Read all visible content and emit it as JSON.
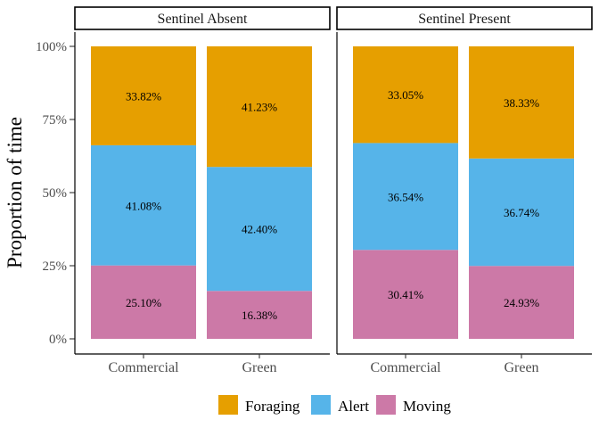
{
  "chart_data": {
    "type": "bar",
    "stacked": true,
    "ylabel": "Proportion of time",
    "xlabel": "",
    "ylim": [
      0,
      1
    ],
    "yticks": [
      "0%",
      "25%",
      "50%",
      "75%",
      "100%"
    ],
    "legend_placement": "bottom",
    "grid": false,
    "panels": [
      {
        "title": "Sentinel Absent",
        "categories": [
          "Commercial",
          "Green"
        ],
        "series": [
          {
            "name": "Moving",
            "values": [
              0.251,
              0.1638
            ],
            "labels": [
              "25.10%",
              "16.38%"
            ]
          },
          {
            "name": "Alert",
            "values": [
              0.4108,
              0.424
            ],
            "labels": [
              "41.08%",
              "42.40%"
            ]
          },
          {
            "name": "Foraging",
            "values": [
              0.3382,
              0.4123
            ],
            "labels": [
              "33.82%",
              "41.23%"
            ]
          }
        ]
      },
      {
        "title": "Sentinel Present",
        "categories": [
          "Commercial",
          "Green"
        ],
        "series": [
          {
            "name": "Moving",
            "values": [
              0.3041,
              0.2493
            ],
            "labels": [
              "30.41%",
              "24.93%"
            ]
          },
          {
            "name": "Alert",
            "values": [
              0.3654,
              0.3674
            ],
            "labels": [
              "36.54%",
              "36.74%"
            ]
          },
          {
            "name": "Foraging",
            "values": [
              0.3305,
              0.3833
            ],
            "labels": [
              "33.05%",
              "38.33%"
            ]
          }
        ]
      }
    ],
    "legend": [
      {
        "name": "Foraging",
        "color": "#E69F00"
      },
      {
        "name": "Alert",
        "color": "#56B4E9"
      },
      {
        "name": "Moving",
        "color": "#CC79A7"
      }
    ],
    "colors": {
      "Foraging": "#E69F00",
      "Alert": "#56B4E9",
      "Moving": "#CC79A7"
    }
  }
}
